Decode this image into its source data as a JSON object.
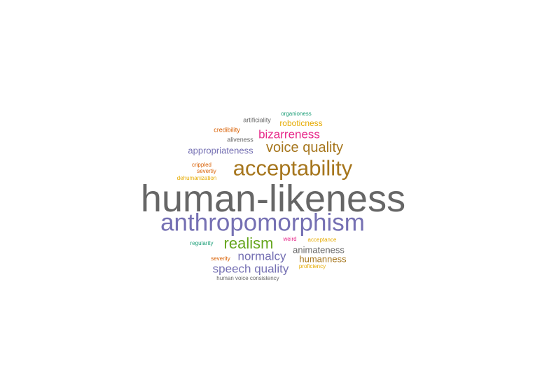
{
  "word_cloud": {
    "words": [
      {
        "text": "human-likeness",
        "color": "#666666"
      },
      {
        "text": "anthropomorphism",
        "color": "#7570b3"
      },
      {
        "text": "acceptability",
        "color": "#a6761d"
      },
      {
        "text": "voice quality",
        "color": "#a6761d"
      },
      {
        "text": "bizarreness",
        "color": "#e7298a"
      },
      {
        "text": "roboticness",
        "color": "#e6ab02"
      },
      {
        "text": "organioness",
        "color": "#1b9e77"
      },
      {
        "text": "artificiality",
        "color": "#666666"
      },
      {
        "text": "credibility",
        "color": "#d95f02"
      },
      {
        "text": "aliveness",
        "color": "#666666"
      },
      {
        "text": "appropriateness",
        "color": "#7570b3"
      },
      {
        "text": "crippled",
        "color": "#d95f02"
      },
      {
        "text": "severtiy",
        "color": "#d95f02"
      },
      {
        "text": "dehumanization",
        "color": "#e6ab02"
      },
      {
        "text": "realism",
        "color": "#66a61e"
      },
      {
        "text": "regularity",
        "color": "#1b9e77"
      },
      {
        "text": "weird",
        "color": "#e7298a"
      },
      {
        "text": "acceptance",
        "color": "#e6ab02"
      },
      {
        "text": "animateness",
        "color": "#666666"
      },
      {
        "text": "normalcy",
        "color": "#7570b3"
      },
      {
        "text": "humanness",
        "color": "#a6761d"
      },
      {
        "text": "severity",
        "color": "#d95f02"
      },
      {
        "text": "speech quality",
        "color": "#7570b3"
      },
      {
        "text": "proficiency",
        "color": "#e6ab02"
      },
      {
        "text": "human voice consistency",
        "color": "#666666"
      }
    ]
  }
}
